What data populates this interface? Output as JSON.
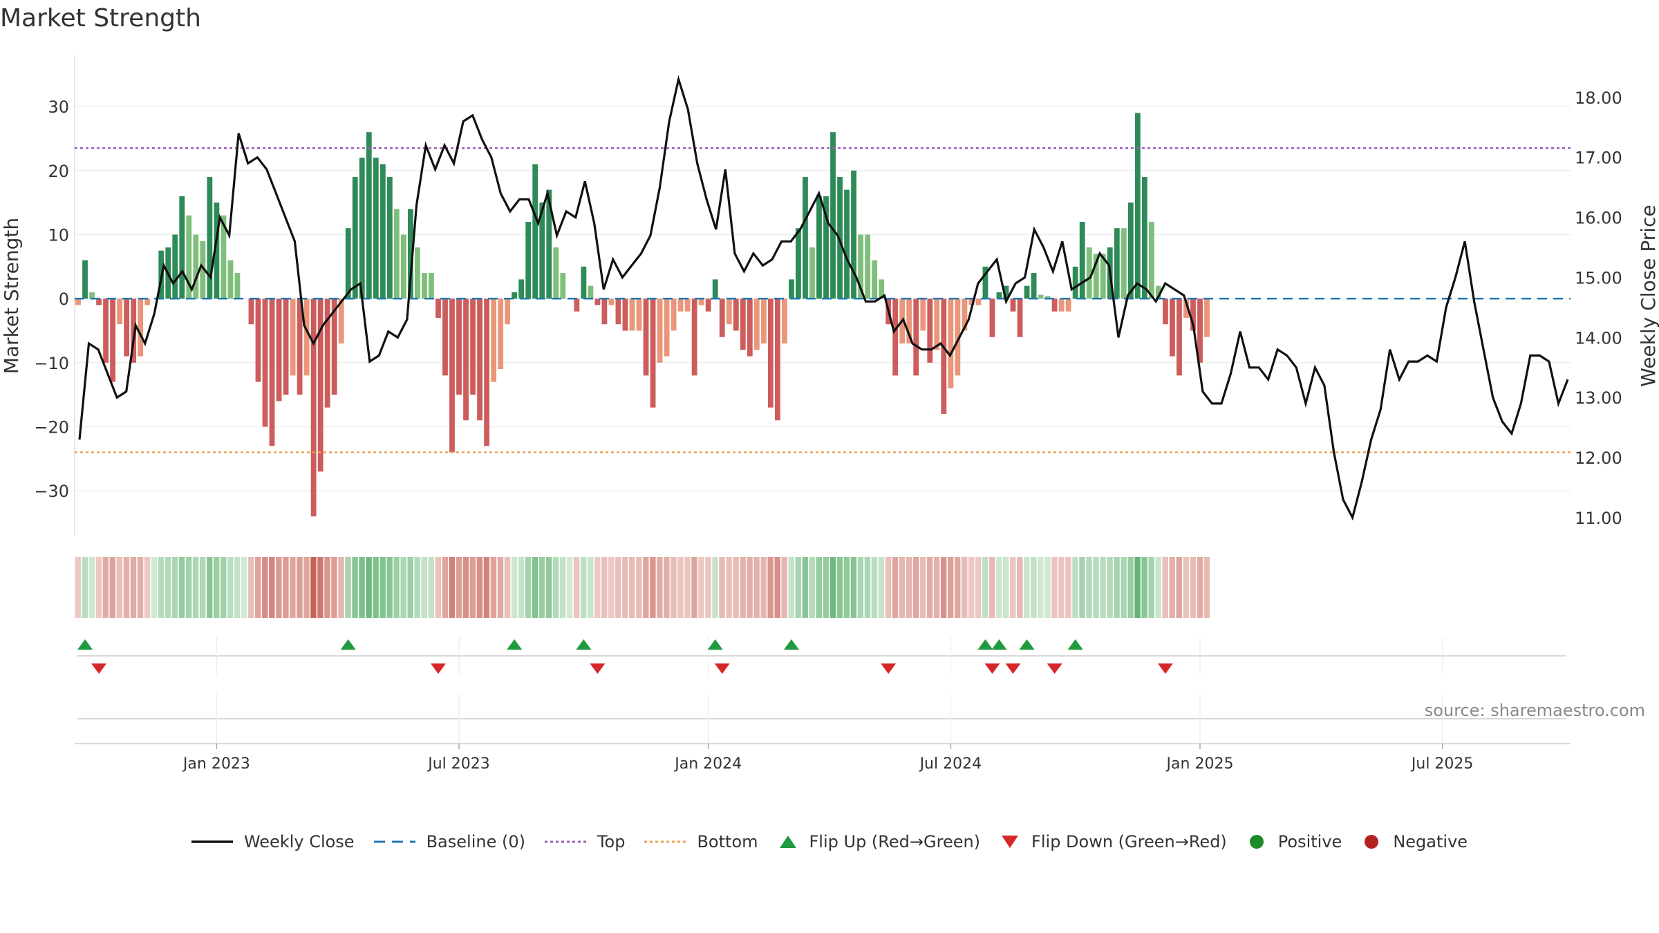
{
  "title": "Market Strength",
  "source": "source: sharemaestro.com",
  "legend": {
    "weekly_close": "Weekly Close",
    "baseline": "Baseline (0)",
    "top": "Top",
    "bottom": "Bottom",
    "flip_up": "Flip Up (Red→Green)",
    "flip_down": "Flip Down (Green→Red)",
    "positive": "Positive",
    "negative": "Negative"
  },
  "colors": {
    "pos_strong": "#2e8b57",
    "pos_weak": "#7fbf7b",
    "neg_strong": "#cd5c5c",
    "neg_weak": "#e9967a",
    "top_line": "#9b59b6",
    "bottom_line": "#f0a050",
    "baseline": "#1f77b4",
    "close": "#111111",
    "flip_up": "#1f9a3e",
    "flip_down": "#d62728",
    "positive_dot": "#1f8a2a",
    "negative_dot": "#b22222"
  },
  "chart_data": {
    "type": "bar+line",
    "ylabel": "Market Strength",
    "y2label": "Weekly Close Price",
    "ylim": [
      -37,
      38
    ],
    "y2lim": [
      10.7,
      18.7
    ],
    "yticks": [
      30,
      20,
      10,
      0,
      -10,
      -20,
      -30
    ],
    "y2ticks": [
      "18.00",
      "17.00",
      "16.00",
      "15.00",
      "14.00",
      "13.00",
      "12.00",
      "11.00"
    ],
    "top_threshold": 23.5,
    "bottom_threshold": -24,
    "x_tick_labels": [
      "Jan 2023",
      "Jul 2023",
      "Jan 2024",
      "Jul 2024",
      "Jan 2025",
      "Jul 2025"
    ],
    "x_tick_weeks": [
      20,
      55,
      91,
      126,
      162,
      197
    ],
    "weeks": 216,
    "strength": [
      -1,
      6,
      1,
      -1,
      -10,
      -13,
      -4,
      -9,
      -10,
      -9,
      -1,
      0,
      7.5,
      8,
      10,
      16,
      13,
      10,
      9,
      19,
      15,
      13,
      6,
      4,
      0,
      -4,
      -13,
      -20,
      -23,
      -16,
      -15,
      -12,
      -15,
      -12,
      -34,
      -27,
      -17,
      -15,
      -7,
      11,
      19,
      22,
      26,
      22,
      21,
      19,
      14,
      10,
      14,
      8,
      4,
      4,
      -3,
      -12,
      -24,
      -15,
      -19,
      -15,
      -19,
      -23,
      -13,
      -11,
      -4,
      1,
      3,
      12,
      21,
      15,
      17,
      8,
      4,
      0,
      -2,
      5,
      2,
      -1,
      -4,
      -1,
      -4,
      -5,
      -5,
      -5,
      -12,
      -17,
      -10,
      -9,
      -5,
      -2,
      -2,
      -12,
      -1,
      -2,
      3,
      -6,
      -4,
      -5,
      -8,
      -9,
      -8,
      -7,
      -17,
      -19,
      -7,
      3,
      11,
      19,
      8,
      16,
      16,
      26,
      19,
      17,
      20,
      10,
      10,
      6,
      3,
      -4,
      -12,
      -7,
      -7,
      -12,
      -5,
      -10,
      -8,
      -18,
      -14,
      -12,
      -5,
      -1,
      -1,
      5,
      -6,
      1,
      2,
      -2,
      -6,
      2,
      4,
      0.6,
      0.4,
      -2,
      -2,
      -2,
      5,
      12,
      8,
      7,
      7,
      8,
      11,
      11,
      15,
      29,
      19,
      12,
      2,
      -4,
      -9,
      -12,
      -3,
      -5,
      -10,
      -6
    ],
    "close": [
      12.3,
      13.9,
      13.8,
      13.4,
      13.0,
      13.1,
      14.2,
      13.9,
      14.4,
      15.2,
      14.9,
      15.1,
      14.8,
      15.2,
      15.0,
      16.0,
      15.7,
      17.4,
      16.9,
      17.0,
      16.8,
      16.4,
      16.0,
      15.6,
      14.2,
      13.9,
      14.2,
      14.4,
      14.6,
      14.8,
      14.9,
      13.6,
      13.7,
      14.1,
      14.0,
      14.3,
      16.2,
      17.2,
      16.8,
      17.2,
      16.9,
      17.6,
      17.7,
      17.3,
      17.0,
      16.4,
      16.1,
      16.3,
      16.3,
      15.9,
      16.4,
      15.7,
      16.1,
      16.0,
      16.6,
      15.9,
      14.8,
      15.3,
      15.0,
      15.2,
      15.4,
      15.7,
      16.5,
      17.6,
      18.3,
      17.8,
      16.9,
      16.3,
      15.8,
      16.8,
      15.4,
      15.1,
      15.4,
      15.2,
      15.3,
      15.6,
      15.6,
      15.8,
      16.1,
      16.4,
      15.9,
      15.7,
      15.3,
      15.0,
      14.6,
      14.6,
      14.7,
      14.1,
      14.3,
      13.9,
      13.8,
      13.8,
      13.9,
      13.7,
      14.0,
      14.3,
      14.9,
      15.1,
      15.3,
      14.6,
      14.9,
      15.0,
      15.8,
      15.5,
      15.1,
      15.6,
      14.8,
      14.9,
      15.0,
      15.4,
      15.2,
      14.0,
      14.7,
      14.9,
      14.8,
      14.6,
      14.9,
      14.8,
      14.7,
      14.2,
      13.1,
      12.9,
      12.9,
      13.4,
      14.1,
      13.5,
      13.5,
      13.3,
      13.8,
      13.7,
      13.5,
      12.9,
      13.5,
      13.2,
      12.1,
      11.3,
      11.0,
      11.6,
      12.3,
      12.8,
      13.8,
      13.3,
      13.6,
      13.6,
      13.7,
      13.6,
      14.5,
      15.0,
      15.6,
      14.6,
      13.8,
      13.0,
      12.6,
      12.4,
      12.9,
      13.7,
      13.7,
      13.6,
      12.9,
      13.3
    ]
  }
}
